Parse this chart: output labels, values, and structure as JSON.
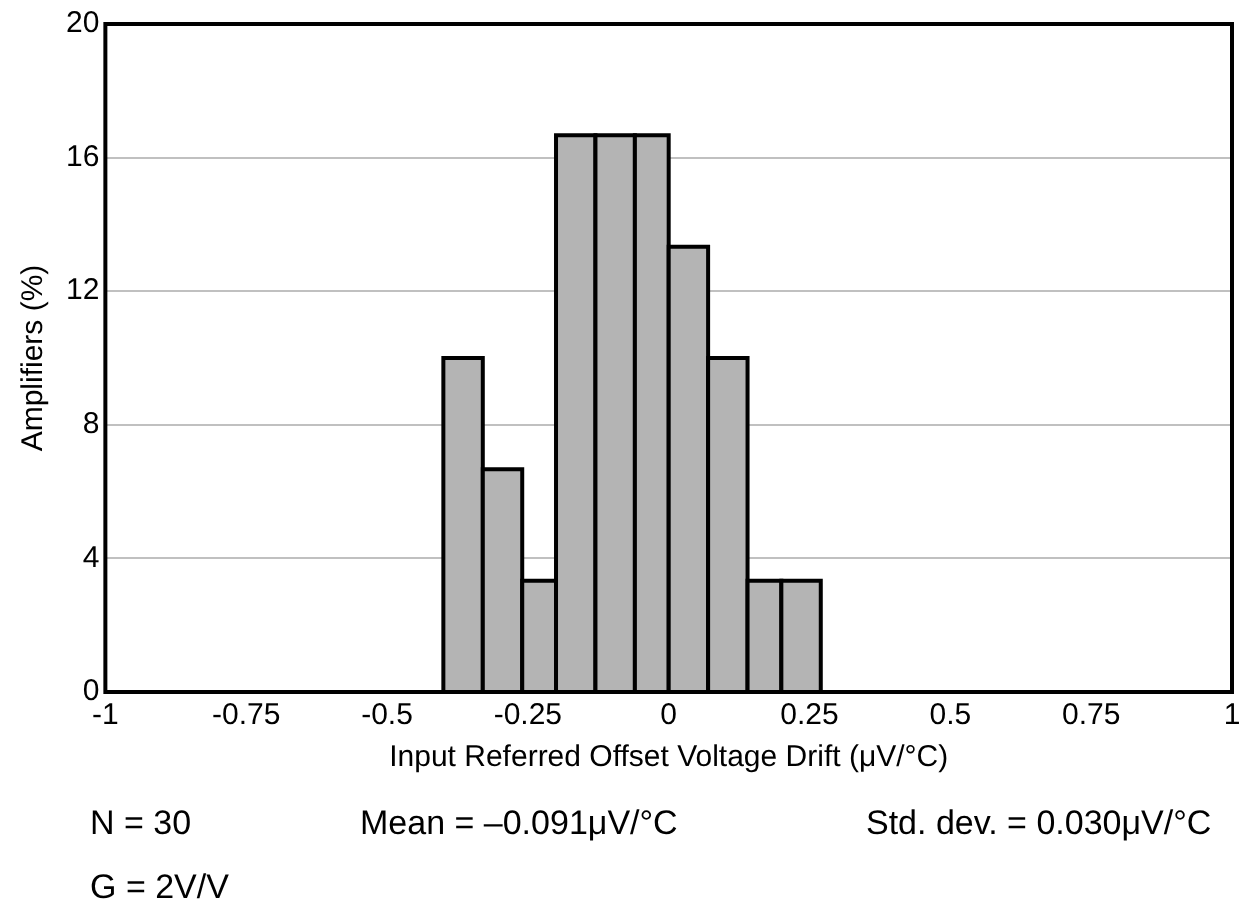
{
  "chart_data": {
    "type": "histogram",
    "xlabel": "Input Referred Offset Voltage Drift (μV/°C)",
    "ylabel": "Amplifiers (%)",
    "bins": [
      -0.4,
      -0.33,
      -0.26,
      -0.2,
      -0.13,
      -0.06,
      0.0,
      0.07,
      0.14,
      0.2,
      0.27
    ],
    "values": [
      10,
      6.67,
      3.33,
      16.67,
      16.67,
      16.67,
      13.33,
      10,
      3.33,
      3.33
    ],
    "color": "#b4b4b4",
    "xlim": [
      -1,
      1
    ],
    "xticks": [
      -1,
      -0.75,
      -0.5,
      -0.25,
      0,
      0.25,
      0.5,
      0.75,
      1
    ],
    "ylim": [
      0,
      20
    ],
    "yticks": [
      0,
      4,
      8,
      12,
      16,
      20
    ],
    "grid": "y",
    "annotations": [
      "N = 30",
      "Mean = –0.091μV/°C",
      "Std. dev. = 0.030μV/°C",
      "G = 2V/V"
    ]
  }
}
